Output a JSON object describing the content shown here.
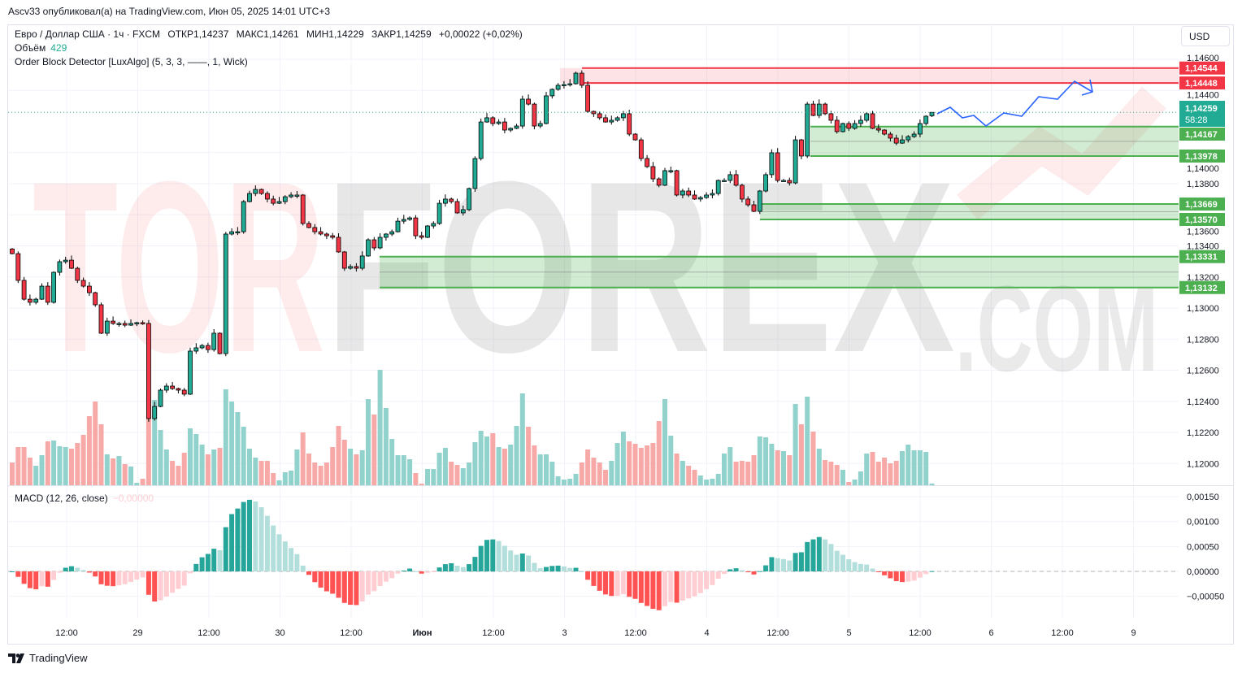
{
  "header": {
    "published": "Ascv33 опубликовал(а) на TradingView.com, Июн 05, 2025 14:01 UTC+3"
  },
  "legend": {
    "symbol": "Евро / Доллар США · 1ч · FXCM",
    "open": "ОТКР1,14237",
    "high": "МАКС1,14261",
    "low": "МИН1,14229",
    "close": "ЗАКР1,14259",
    "change": "+0,00022 (+0,02%)",
    "volume_label": "Объём",
    "volume_value": "429",
    "indicator": "Order Block Detector [LuxAlgo] (5, 3, 3, ——, 1, Wick)"
  },
  "price_scale": {
    "currency": "USD",
    "ticks": [
      "1,14600",
      "1,14400",
      "1,14000",
      "1,13800",
      "1,13600",
      "1,13400",
      "1,13200",
      "1,13000",
      "1,12800",
      "1,12600",
      "1,12400",
      "1,12200",
      "1,12000"
    ],
    "current_price": "1,14259",
    "countdown": "58:28",
    "zone_labels": [
      "1,14544",
      "1,14448",
      "1,14167",
      "1,13978",
      "1,13669",
      "1,13570",
      "1,13331",
      "1,13132"
    ]
  },
  "macd": {
    "title": "MACD (12, 26, close)",
    "value": "−0,00000",
    "ticks": [
      "0,00150",
      "0,00100",
      "0,00050",
      "0,00000",
      "−0,00050"
    ]
  },
  "time_axis": {
    "labels": [
      "12:00",
      "29",
      "12:00",
      "30",
      "12:00",
      "Июн",
      "12:00",
      "3",
      "12:00",
      "4",
      "12:00",
      "5",
      "12:00",
      "6",
      "12:00",
      "9"
    ]
  },
  "footer": {
    "brand": "TradingView"
  },
  "watermark": {
    "part1": "TOR",
    "part2": "FOREX",
    "part3": ".COM"
  },
  "colors": {
    "up": "#22ab94",
    "down": "#f23645",
    "vol_up": "#92d2cc",
    "vol_down": "#f7a9a7",
    "zone_bull": "#4caf50",
    "zone_bear": "#f23645",
    "projection": "#2962ff"
  },
  "chart_data": {
    "type": "candlestick",
    "interval": "1h",
    "last_candle": {
      "open": 1.14237,
      "high": 1.14261,
      "low": 1.14229,
      "close": 1.14259
    },
    "closes": [
      1.1335,
      1.13178,
      1.13057,
      1.13037,
      1.13057,
      1.13141,
      1.13037,
      1.1323,
      1.13298,
      1.13308,
      1.13256,
      1.13178,
      1.13141,
      1.13099,
      1.13021,
      1.12838,
      1.12916,
      1.12901,
      1.12901,
      1.1289,
      1.12901,
      1.12906,
      1.12901,
      1.12289,
      1.12367,
      1.12472,
      1.12498,
      1.12482,
      1.12472,
      1.12446,
      1.12723,
      1.12744,
      1.12759,
      1.12733,
      1.12838,
      1.12707,
      1.13476,
      1.13491,
      1.13491,
      1.13685,
      1.13737,
      1.13763,
      1.13737,
      1.13701,
      1.13674,
      1.13685,
      1.13716,
      1.13727,
      1.13727,
      1.13544,
      1.13518,
      1.13491,
      1.13476,
      1.13465,
      1.13455,
      1.13361,
      1.13256,
      1.13267,
      1.13256,
      1.13335,
      1.13439,
      1.13387,
      1.13455,
      1.13476,
      1.13491,
      1.13559,
      1.1357,
      1.1358,
      1.13465,
      1.13455,
      1.13528,
      1.13544,
      1.13674,
      1.13701,
      1.13685,
      1.13612,
      1.13633,
      1.13769,
      1.13962,
      1.14197,
      1.14224,
      1.14187,
      1.14197,
      1.14145,
      1.14156,
      1.14171,
      1.14344,
      1.14312,
      1.14171,
      1.14187,
      1.14365,
      1.14407,
      1.14433,
      1.14438,
      1.14443,
      1.14511,
      1.14433,
      1.14265,
      1.1425,
      1.14224,
      1.14197,
      1.14208,
      1.14224,
      1.1425,
      1.14119,
      1.14082,
      1.13962,
      1.1391,
      1.13831,
      1.1379,
      1.13884,
      1.13884,
      1.13727,
      1.13753,
      1.13727,
      1.13701,
      1.13711,
      1.13727,
      1.13737,
      1.13821,
      1.13821,
      1.13858,
      1.1379,
      1.13701,
      1.13664,
      1.13622,
      1.13753,
      1.13858,
      1.13999,
      1.13821,
      1.13821,
      1.13805,
      1.14082,
      1.13978,
      1.14312,
      1.14239,
      1.14312,
      1.1425,
      1.14208,
      1.14135,
      1.14187,
      1.14156,
      1.14187,
      1.14208,
      1.1425,
      1.14156,
      1.14145,
      1.14119,
      1.14093,
      1.14061,
      1.14082,
      1.14103,
      1.14119,
      1.14187,
      1.14234,
      1.14259
    ],
    "volumes": [
      5600,
      9400,
      9400,
      6800,
      4800,
      7400,
      10800,
      11000,
      9600,
      9400,
      9000,
      10400,
      12400,
      17000,
      20600,
      15000,
      7600,
      6600,
      7200,
      5200,
      4600,
      600,
      1600,
      21400,
      21000,
      13600,
      8800,
      6000,
      4800,
      8000,
      14000,
      12600,
      10000,
      7600,
      8800,
      9200,
      23600,
      20600,
      18000,
      14400,
      9000,
      6800,
      6000,
      6000,
      3000,
      1200,
      3200,
      3600,
      8800,
      13000,
      7800,
      5600,
      4800,
      5600,
      9400,
      14600,
      11200,
      9000,
      7600,
      8600,
      21200,
      17400,
      28400,
      19000,
      11400,
      7400,
      7400,
      6400,
      3000,
      400,
      4000,
      4000,
      8000,
      9200,
      5800,
      5000,
      4200,
      5600,
      10600,
      13400,
      12000,
      12800,
      9400,
      9000,
      10000,
      14600,
      22600,
      14400,
      9800,
      7600,
      7600,
      5800,
      2200,
      1400,
      1600,
      2800,
      5600,
      8800,
      6800,
      5600,
      3800,
      6000,
      10400,
      13200,
      10800,
      10200,
      9200,
      9800,
      10400,
      15800,
      21200,
      12200,
      7800,
      6000,
      4800,
      3800,
      2400,
      1400,
      1600,
      2800,
      7800,
      9400,
      5800,
      6000,
      5800,
      7400,
      12000,
      11800,
      10200,
      8600,
      8400,
      7400,
      20000,
      15000,
      21800,
      13200,
      9000,
      6200,
      5800,
      5000,
      3800,
      800,
      1400,
      3400,
      7800,
      8200,
      5800,
      6800,
      5400,
      6000,
      8400,
      10000,
      8600,
      8600,
      8200,
      429
    ],
    "order_blocks": [
      {
        "type": "bearish",
        "top": 1.14544,
        "bottom": 1.14448
      },
      {
        "type": "bullish",
        "top": 1.14167,
        "bottom": 1.13978
      },
      {
        "type": "bullish",
        "top": 1.13669,
        "bottom": 1.1357
      },
      {
        "type": "bullish",
        "top": 1.13331,
        "bottom": 1.13132
      }
    ],
    "price_axis": {
      "min": 1.12,
      "max": 1.146
    },
    "macd_axis": {
      "min": -0.0005,
      "max": 0.0015
    },
    "macd_params": {
      "fast": 12,
      "slow": 26,
      "source": "close"
    },
    "grid": true
  }
}
